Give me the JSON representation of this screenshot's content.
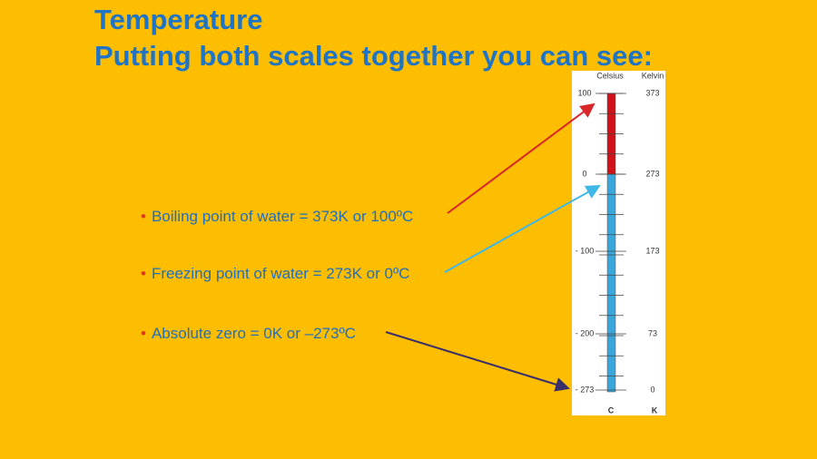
{
  "header": {
    "title": "Temperature",
    "subtitle": "Putting both scales together you can see:"
  },
  "bullets": [
    "Boiling point of water = 373K or 100ºC",
    "Freezing point of water = 273K or 0ºC",
    "Absolute zero = 0K or –273ºC"
  ],
  "thermometer": {
    "celsius_heading": "Celsius",
    "kelvin_heading": "Kelvin",
    "celsius_labels": [
      "100",
      "0",
      "- 100",
      "- 200",
      "- 273"
    ],
    "kelvin_labels": [
      "373",
      "273",
      "173",
      "73",
      "0"
    ],
    "celsius_unit": "C",
    "kelvin_unit": "K"
  }
}
